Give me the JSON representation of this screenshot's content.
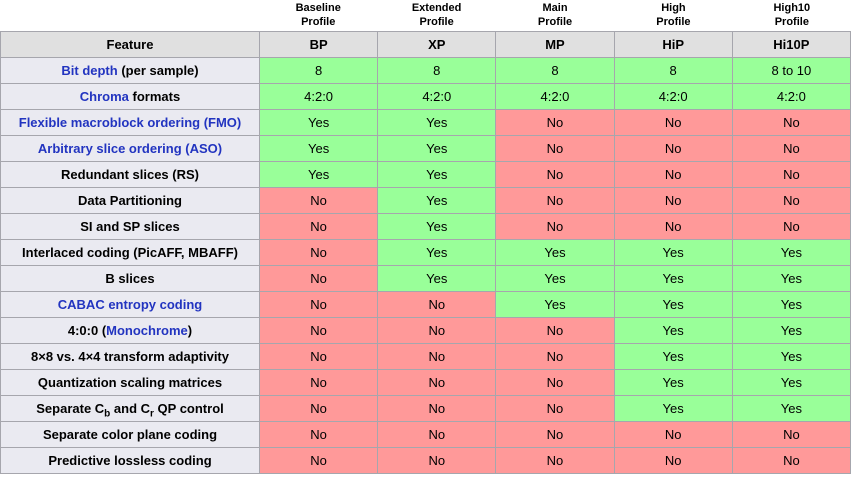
{
  "table": {
    "feature_header": "Feature",
    "profiles": [
      {
        "name": "Baseline\nProfile",
        "abbr": "BP"
      },
      {
        "name": "Extended\nProfile",
        "abbr": "XP"
      },
      {
        "name": "Main\nProfile",
        "abbr": "MP"
      },
      {
        "name": "High\nProfile",
        "abbr": "HiP"
      },
      {
        "name": "High10\nProfile",
        "abbr": "Hi10P"
      }
    ],
    "rows": [
      {
        "id": "bit-depth",
        "feature": [
          {
            "text": "Bit depth",
            "link": true
          },
          {
            "text": " (per sample)"
          }
        ],
        "values": [
          "8",
          "8",
          "8",
          "8",
          "8 to 10"
        ],
        "states": [
          "yes",
          "yes",
          "yes",
          "yes",
          "yes"
        ]
      },
      {
        "id": "chroma-formats",
        "feature": [
          {
            "text": "Chroma",
            "link": true
          },
          {
            "text": " formats"
          }
        ],
        "values": [
          "4:2:0",
          "4:2:0",
          "4:2:0",
          "4:2:0",
          "4:2:0"
        ],
        "states": [
          "yes",
          "yes",
          "yes",
          "yes",
          "yes"
        ]
      },
      {
        "id": "fmo",
        "feature": [
          {
            "text": "Flexible macroblock ordering (FMO)",
            "link": true
          }
        ],
        "values": [
          "Yes",
          "Yes",
          "No",
          "No",
          "No"
        ],
        "states": [
          "yes",
          "yes",
          "no",
          "no",
          "no"
        ]
      },
      {
        "id": "aso",
        "feature": [
          {
            "text": "Arbitrary slice ordering (ASO)",
            "link": true
          }
        ],
        "values": [
          "Yes",
          "Yes",
          "No",
          "No",
          "No"
        ],
        "states": [
          "yes",
          "yes",
          "no",
          "no",
          "no"
        ]
      },
      {
        "id": "redundant-slices",
        "feature": [
          {
            "text": "Redundant slices (RS)"
          }
        ],
        "values": [
          "Yes",
          "Yes",
          "No",
          "No",
          "No"
        ],
        "states": [
          "yes",
          "yes",
          "no",
          "no",
          "no"
        ]
      },
      {
        "id": "data-partitioning",
        "feature": [
          {
            "text": "Data Partitioning"
          }
        ],
        "values": [
          "No",
          "Yes",
          "No",
          "No",
          "No"
        ],
        "states": [
          "no",
          "yes",
          "no",
          "no",
          "no"
        ]
      },
      {
        "id": "si-sp-slices",
        "feature": [
          {
            "text": "SI and SP slices"
          }
        ],
        "values": [
          "No",
          "Yes",
          "No",
          "No",
          "No"
        ],
        "states": [
          "no",
          "yes",
          "no",
          "no",
          "no"
        ]
      },
      {
        "id": "interlaced-coding",
        "feature": [
          {
            "text": "Interlaced coding (PicAFF, MBAFF)"
          }
        ],
        "values": [
          "No",
          "Yes",
          "Yes",
          "Yes",
          "Yes"
        ],
        "states": [
          "no",
          "yes",
          "yes",
          "yes",
          "yes"
        ]
      },
      {
        "id": "b-slices",
        "feature": [
          {
            "text": "B slices"
          }
        ],
        "values": [
          "No",
          "Yes",
          "Yes",
          "Yes",
          "Yes"
        ],
        "states": [
          "no",
          "yes",
          "yes",
          "yes",
          "yes"
        ]
      },
      {
        "id": "cabac",
        "feature": [
          {
            "text": "CABAC entropy coding",
            "link": true
          }
        ],
        "values": [
          "No",
          "No",
          "Yes",
          "Yes",
          "Yes"
        ],
        "states": [
          "no",
          "no",
          "yes",
          "yes",
          "yes"
        ]
      },
      {
        "id": "monochrome",
        "feature": [
          {
            "text": "4:0:0 ("
          },
          {
            "text": "Monochrome",
            "link": true
          },
          {
            "text": ")"
          }
        ],
        "values": [
          "No",
          "No",
          "No",
          "Yes",
          "Yes"
        ],
        "states": [
          "no",
          "no",
          "no",
          "yes",
          "yes"
        ]
      },
      {
        "id": "transform-adaptivity",
        "feature": [
          {
            "text": "8×8 vs. 4×4 transform adaptivity"
          }
        ],
        "values": [
          "No",
          "No",
          "No",
          "Yes",
          "Yes"
        ],
        "states": [
          "no",
          "no",
          "no",
          "yes",
          "yes"
        ]
      },
      {
        "id": "quantization-scaling",
        "feature": [
          {
            "text": "Quantization scaling matrices"
          }
        ],
        "values": [
          "No",
          "No",
          "No",
          "Yes",
          "Yes"
        ],
        "states": [
          "no",
          "no",
          "no",
          "yes",
          "yes"
        ]
      },
      {
        "id": "separate-qp-control",
        "feature": [
          {
            "text": "Separate C"
          },
          {
            "text": "b",
            "sub": true
          },
          {
            "text": " and C"
          },
          {
            "text": "r",
            "sub": true
          },
          {
            "text": " QP control"
          }
        ],
        "values": [
          "No",
          "No",
          "No",
          "Yes",
          "Yes"
        ],
        "states": [
          "no",
          "no",
          "no",
          "yes",
          "yes"
        ]
      },
      {
        "id": "separate-color-plane",
        "feature": [
          {
            "text": "Separate color plane coding"
          }
        ],
        "values": [
          "No",
          "No",
          "No",
          "No",
          "No"
        ],
        "states": [
          "no",
          "no",
          "no",
          "no",
          "no"
        ]
      },
      {
        "id": "predictive-lossless",
        "feature": [
          {
            "text": "Predictive lossless coding"
          }
        ],
        "values": [
          "No",
          "No",
          "No",
          "No",
          "No"
        ],
        "states": [
          "no",
          "no",
          "no",
          "no",
          "no"
        ]
      }
    ],
    "colors": {
      "yes": "#99ff99",
      "no": "#ff9999",
      "header_bg": "#e0e0e0",
      "feature_bg": "#eaeaf1",
      "link": "#2234c0"
    }
  }
}
